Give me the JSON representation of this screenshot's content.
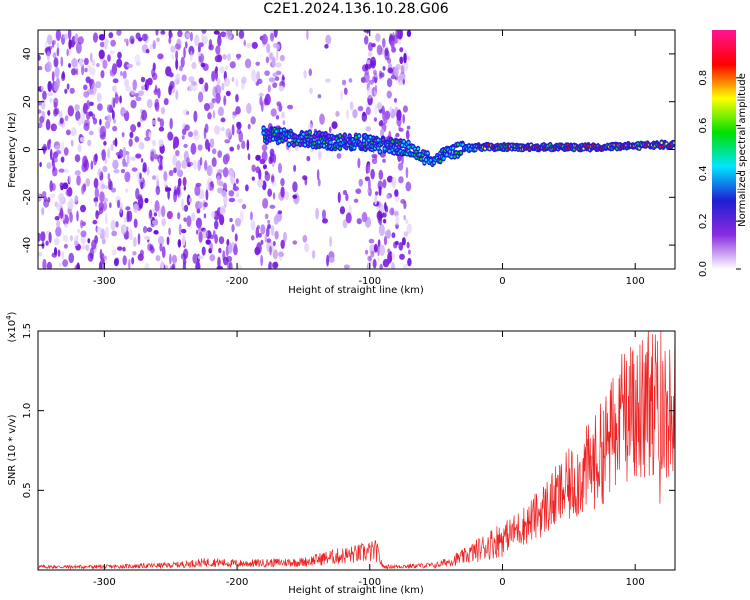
{
  "title": "C2E1.2024.136.10.28.G06",
  "chart_data": [
    {
      "type": "heatmap",
      "xlabel": "Height of straight line (km)",
      "ylabel": "Frequency (Hz)",
      "xlim": [
        -350,
        130
      ],
      "ylim": [
        -50,
        50
      ],
      "xticks": [
        -300,
        -200,
        -100,
        0,
        100
      ],
      "yticks": [
        -40,
        -20,
        0,
        20,
        40
      ],
      "colorbar": {
        "label": "Normalized spectral amplitude",
        "range": [
          0,
          1
        ],
        "ticks": [
          "0.0",
          "0.2",
          "0.4",
          "0.6",
          "0.8"
        ],
        "tick_values": [
          0,
          0.2,
          0.4,
          0.6,
          0.8
        ],
        "colors": [
          "#ffffff",
          "#8a2be2",
          "#1e1ed2",
          "#00e5ff",
          "#00e000",
          "#ffff00",
          "#ff0000",
          "#ff1493"
        ]
      },
      "features": {
        "noise_region_x": [
          -350,
          -70
        ],
        "signal_center_hz": [
          [
            -180,
            6
          ],
          [
            -160,
            5
          ],
          [
            -140,
            4
          ],
          [
            -120,
            3
          ],
          [
            -105,
            3
          ],
          [
            -70,
            0
          ],
          [
            -60,
            -3
          ],
          [
            -50,
            -4
          ],
          [
            -40,
            -1
          ],
          [
            -20,
            1
          ],
          [
            0,
            1
          ],
          [
            40,
            1
          ],
          [
            80,
            1
          ],
          [
            120,
            2
          ]
        ]
      }
    },
    {
      "type": "line",
      "xlabel": "Height of straight line (km)",
      "ylabel": "SNR (10 * v/v)",
      "y_scale_label": "(x10",
      "y_scale_exponent": "4",
      "y_scale_suffix": ")",
      "xlim": [
        -350,
        130
      ],
      "ylim": [
        0,
        1.5
      ],
      "xticks": [
        -300,
        -200,
        -100,
        0,
        100
      ],
      "yticks": [
        0.5,
        1.0,
        1.5
      ],
      "ytick_labels": [
        "0.5",
        "1.0",
        "1.5"
      ],
      "series": [
        {
          "color": "#ee2222",
          "x": [
            -350,
            -300,
            -250,
            -220,
            -200,
            -150,
            -130,
            -110,
            -95,
            -90,
            -50,
            -30,
            -20,
            0,
            20,
            40,
            60,
            70,
            80,
            90,
            100,
            110,
            120,
            130
          ],
          "y": [
            0.02,
            0.02,
            0.03,
            0.05,
            0.04,
            0.05,
            0.08,
            0.1,
            0.12,
            0.02,
            0.03,
            0.08,
            0.12,
            0.2,
            0.3,
            0.45,
            0.6,
            0.68,
            0.8,
            0.95,
            1.0,
            1.05,
            1.05,
            1.0
          ]
        }
      ]
    }
  ]
}
